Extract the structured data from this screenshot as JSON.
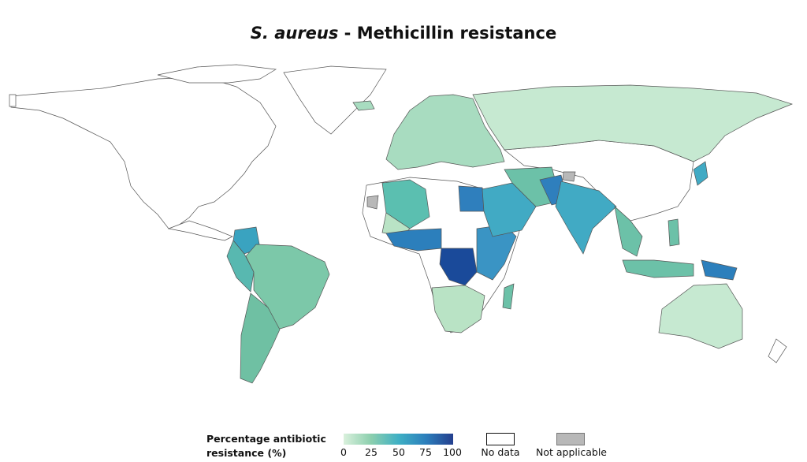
{
  "title": {
    "organism": "S. aureus",
    "rest": " - Methicillin resistance"
  },
  "legend": {
    "title": "Percentage antibiotic resistance (%)",
    "ticks": [
      "0",
      "25",
      "50",
      "75",
      "100"
    ],
    "scale_colors": [
      "#d9f0dc",
      "#8ccfae",
      "#3fb0c4",
      "#2c7fbc",
      "#243f8e"
    ],
    "no_data_label": "No data",
    "no_data_color": "#ffffff",
    "not_applicable_label": "Not applicable",
    "not_applicable_color": "#b8b8b8"
  },
  "regions_resistance_pct": {
    "Russia": 8,
    "Europe": 15,
    "Brazil": 25,
    "Argentina": 28,
    "Peru": 40,
    "Colombia": 55,
    "Algeria": 35,
    "Egypt": 75,
    "Saudi Arabia": 50,
    "Iran": 30,
    "India": 50,
    "Pakistan": 60,
    "DR Congo": 95,
    "Nigeria": 70,
    "East Africa": 60,
    "Southern Africa": 12,
    "Madagascar": 30,
    "Australia": 10,
    "Indonesia": 30,
    "Papua New Guinea": 70,
    "Japan": 45,
    "Vietnam": 30
  }
}
